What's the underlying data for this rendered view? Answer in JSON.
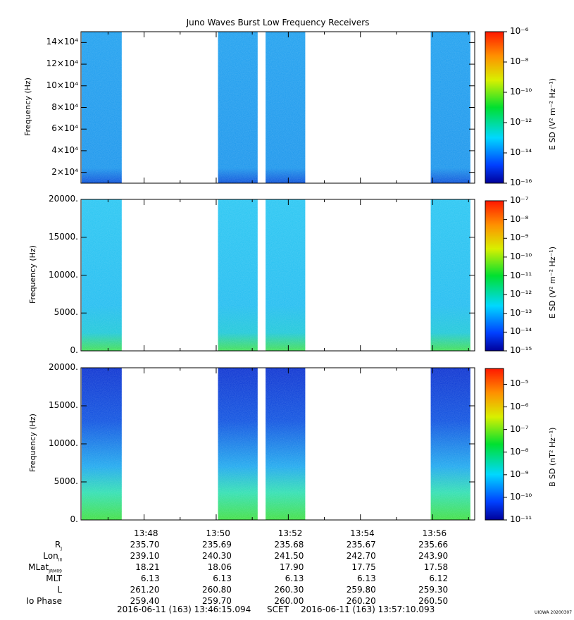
{
  "title": "Juno Waves Burst Low Frequency Receivers",
  "colors": {
    "data_blocks": "#1e9bf0",
    "low_band": "#3cdc5a",
    "deep_blue": "#0a3ccd"
  },
  "chart_data": [
    {
      "type": "heatmap",
      "name": "panel-1",
      "ylabel": "Frequency (Hz)",
      "yticks": [
        "2×10⁴",
        "4×10⁴",
        "6×10⁴",
        "8×10⁴",
        "10×10⁴",
        "12×10⁴",
        "14×10⁴"
      ],
      "ylim": [
        10000,
        150000
      ],
      "yvalues": [
        20000,
        40000,
        60000,
        80000,
        100000,
        120000,
        140000
      ],
      "colorbar_label": "E SD (V² m⁻² Hz⁻¹)",
      "colorbar_ticks": [
        "10⁻⁶",
        "10⁻⁸",
        "10⁻¹⁰",
        "10⁻¹²",
        "10⁻¹⁴",
        "10⁻¹⁶"
      ],
      "colorbar_range": [
        -16,
        -6
      ]
    },
    {
      "type": "heatmap",
      "name": "panel-2",
      "ylabel": "Frequency (Hz)",
      "yticks": [
        "0.",
        "5000.",
        "10000.",
        "15000.",
        "20000."
      ],
      "ylim": [
        0,
        20000
      ],
      "yvalues": [
        0,
        5000,
        10000,
        15000,
        20000
      ],
      "colorbar_label": "E SD (V² m⁻² Hz⁻¹)",
      "colorbar_ticks": [
        "10⁻⁷",
        "10⁻⁸",
        "10⁻⁹",
        "10⁻¹⁰",
        "10⁻¹¹",
        "10⁻¹²",
        "10⁻¹³",
        "10⁻¹⁴",
        "10⁻¹⁵"
      ],
      "colorbar_range": [
        -15,
        -7
      ]
    },
    {
      "type": "heatmap",
      "name": "panel-3",
      "ylabel": "Frequency (Hz)",
      "yticks": [
        "0.",
        "5000.",
        "10000.",
        "15000.",
        "20000."
      ],
      "ylim": [
        0,
        20000
      ],
      "yvalues": [
        0,
        5000,
        10000,
        15000,
        20000
      ],
      "colorbar_label": "B SD (nT² Hz⁻¹)",
      "colorbar_ticks": [
        "10⁻⁵",
        "10⁻⁶",
        "10⁻⁷",
        "10⁻⁸",
        "10⁻⁹",
        "10⁻¹⁰",
        "10⁻¹¹"
      ],
      "colorbar_range": [
        -11,
        -4.3
      ]
    }
  ],
  "time_axis": {
    "tick_labels": [
      "13:48",
      "13:50",
      "13:52",
      "13:54",
      "13:56"
    ],
    "tick_minutes": [
      48,
      50,
      52,
      54,
      56
    ],
    "minor_minutes": [
      47,
      49,
      51,
      53,
      55,
      57
    ],
    "xlim_minutes": [
      46.25,
      57.17
    ],
    "data_blocks_minutes": [
      [
        46.27,
        47.38
      ],
      [
        50.05,
        51.15
      ],
      [
        51.37,
        52.47
      ],
      [
        55.95,
        57.05
      ]
    ]
  },
  "ephemeris": [
    {
      "label": "R",
      "sub": "J",
      "values": [
        "235.70",
        "235.69",
        "235.68",
        "235.67",
        "235.66"
      ]
    },
    {
      "label": "Lon",
      "sub": "III",
      "values": [
        "239.10",
        "240.30",
        "241.50",
        "242.70",
        "243.90"
      ]
    },
    {
      "label": "MLat",
      "sub": "JRM09",
      "values": [
        "18.21",
        "18.06",
        "17.90",
        "17.75",
        "17.58"
      ]
    },
    {
      "label": "MLT",
      "sub": "",
      "values": [
        "6.13",
        "6.13",
        "6.13",
        "6.13",
        "6.12"
      ]
    },
    {
      "label": "L",
      "sub": "",
      "values": [
        "261.20",
        "260.80",
        "260.30",
        "259.80",
        "259.30"
      ]
    },
    {
      "label": "Io Phase",
      "sub": "",
      "values": [
        "259.40",
        "259.70",
        "260.00",
        "260.20",
        "260.50"
      ]
    }
  ],
  "footer": {
    "start": "2016-06-11 (163) 13:46:15.094",
    "scet": "SCET",
    "end": "2016-06-11 (163) 13:57:10.093"
  },
  "credit": "UIOWA 20200307"
}
